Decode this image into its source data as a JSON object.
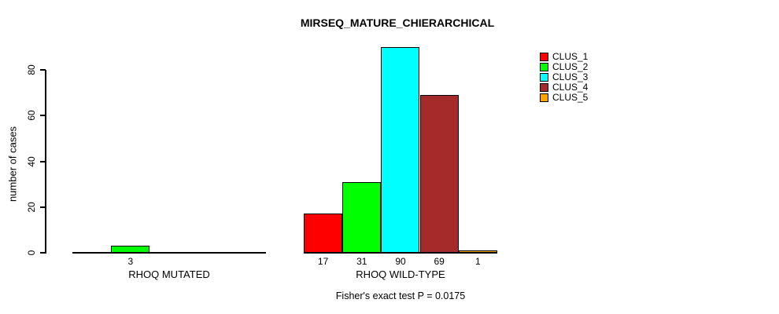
{
  "chart_data": {
    "type": "bar",
    "title": "MIRSEQ_MATURE_CHIERARCHICAL",
    "ylabel": "number of cases",
    "xlabel": "",
    "ylim": [
      0,
      90
    ],
    "yticks": [
      0,
      20,
      40,
      60,
      80
    ],
    "grid": false,
    "legend_position": "right",
    "categories": [
      "RHOQ MUTATED",
      "RHOQ WILD-TYPE"
    ],
    "series": [
      {
        "name": "CLUS_1",
        "color": "#ff0000",
        "values": [
          0,
          17
        ]
      },
      {
        "name": "CLUS_2",
        "color": "#00ff00",
        "values": [
          3,
          31
        ]
      },
      {
        "name": "CLUS_3",
        "color": "#00ffff",
        "values": [
          0,
          90
        ]
      },
      {
        "name": "CLUS_4",
        "color": "#a52a2a",
        "values": [
          0,
          69
        ]
      },
      {
        "name": "CLUS_5",
        "color": "#ffa500",
        "values": [
          0,
          1
        ]
      }
    ],
    "bar_value_labels": [
      [
        "",
        "3",
        "",
        "",
        ""
      ],
      [
        "17",
        "31",
        "90",
        "69",
        "1"
      ]
    ],
    "annotation": "Fisher's exact test P = 0.0175",
    "axis_color": "#000000",
    "background_color": "#ffffff"
  }
}
